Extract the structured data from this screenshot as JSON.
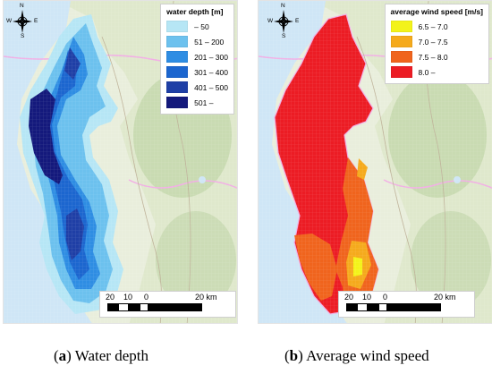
{
  "panel_a": {
    "legend": {
      "title": "water depth [m]",
      "items": [
        {
          "label": "– 50",
          "color": "#b6e6f5"
        },
        {
          "label": "51 – 200",
          "color": "#6cc1ee"
        },
        {
          "label": "201 – 300",
          "color": "#2e8de3"
        },
        {
          "label": "301 – 400",
          "color": "#1c66cf"
        },
        {
          "label": "401 – 500",
          "color": "#1f3fa6"
        },
        {
          "label": "501 –",
          "color": "#14197c"
        }
      ]
    },
    "caption_letter": "a",
    "caption_text": " Water depth"
  },
  "panel_b": {
    "legend": {
      "title": "average wind speed [m/s]",
      "items": [
        {
          "label": "6.5 – 7.0",
          "color": "#f3f31a"
        },
        {
          "label": "7.0 – 7.5",
          "color": "#f5aa1c"
        },
        {
          "label": "7.5 – 8.0",
          "color": "#f0641d"
        },
        {
          "label": "8.0 –",
          "color": "#ec1c24"
        }
      ]
    },
    "caption_letter": "b",
    "caption_text": " Average wind speed"
  },
  "compass": {
    "n": "N",
    "s": "S",
    "e": "E",
    "w": "W"
  },
  "scalebar": {
    "t0": "20",
    "t1": "10",
    "t2": "0",
    "t3": "20 km"
  },
  "colors": {
    "sea": "#cfe6f6",
    "land": "#e9eedc",
    "forest": "#c4d8ae",
    "boundary": "#f2aee5",
    "road": "#bfb39a"
  }
}
